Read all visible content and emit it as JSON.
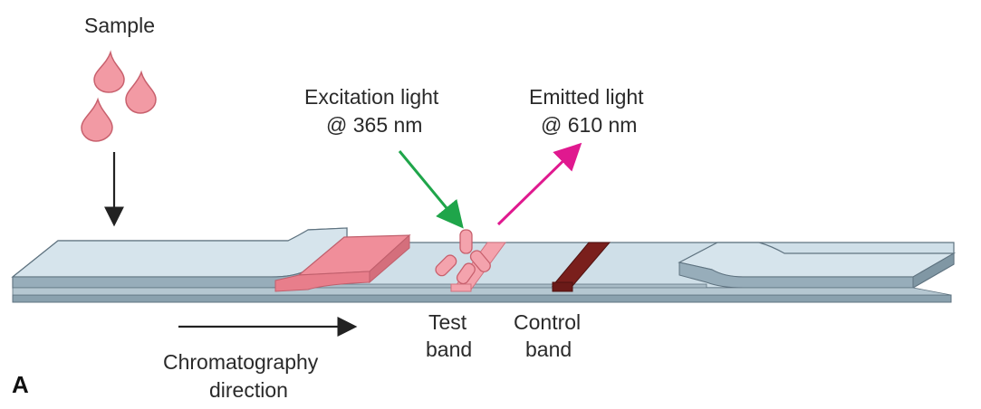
{
  "labels": {
    "sample": "Sample",
    "excitation_line1": "Excitation light",
    "excitation_line2": "@ 365 nm",
    "emitted_line1": "Emitted light",
    "emitted_line2": "@ 610 nm",
    "test_line1": "Test",
    "test_line2": "band",
    "control_line1": "Control",
    "control_line2": "band",
    "direction_line1": "Chromatography",
    "direction_line2": "direction",
    "panel": "A"
  },
  "colors": {
    "strip_top": "#cfdfe8",
    "strip_side": "#8aa1ae",
    "strip_edge": "#5f7380",
    "sample_pad": "#ef8f9a",
    "sample_pad_dark": "#d46f7c",
    "drop": "#f29aa4",
    "test_band": "#f4a3ad",
    "control_band": "#7a1f1c",
    "excitation_arrow": "#1fa54a",
    "emission_arrow": "#e0198f",
    "arrow_black": "#222222"
  },
  "icons": [
    "sample-drop-icon",
    "antibody-icon"
  ]
}
